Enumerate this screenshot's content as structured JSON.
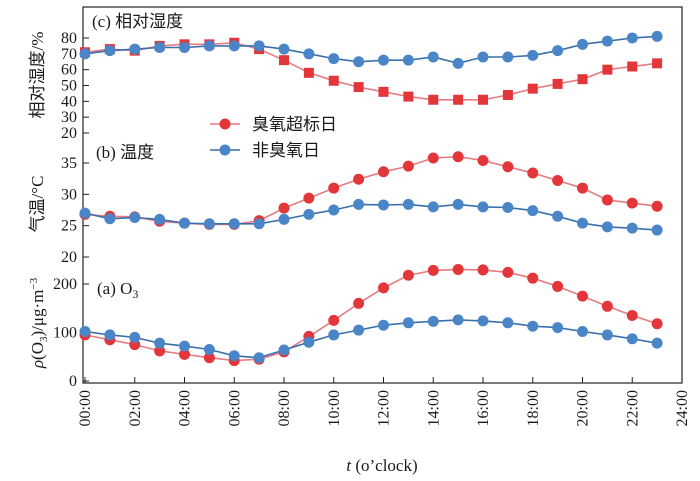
{
  "colors": {
    "red": "#e3363a",
    "blue": "#4a86c7",
    "red_line": "#e67b80",
    "blue_line": "#3a6fae",
    "axis": "#222222"
  },
  "legend": {
    "exceed_label": "臭氧超标日",
    "nonexceed_label": "非臭氧日",
    "placement": "center"
  },
  "xlabel_italic": "t",
  "xlabel_rest": "(o’clock)",
  "chart_data": [
    {
      "type": "line",
      "panel_title": "(c) 相对湿度",
      "ylabel": "相对湿度/%",
      "xlim": [
        0,
        24
      ],
      "ylim": [
        20,
        85
      ],
      "yticks": [
        20,
        30,
        40,
        50,
        60,
        70,
        80
      ],
      "x": [
        0,
        1,
        2,
        3,
        4,
        5,
        6,
        7,
        8,
        9,
        10,
        11,
        12,
        13,
        14,
        15,
        16,
        17,
        18,
        19,
        20,
        21,
        22,
        23
      ],
      "series": [
        {
          "name": "臭氧超标日",
          "color": "red",
          "marker": "square",
          "values": [
            71,
            73,
            72,
            75,
            76,
            76,
            77,
            73,
            66,
            58,
            53,
            49,
            46,
            43,
            41,
            41,
            41,
            44,
            48,
            51,
            54,
            60,
            62,
            64
          ]
        },
        {
          "name": "非臭氧日",
          "color": "blue",
          "marker": "circle",
          "values": [
            70,
            72,
            73,
            74,
            74,
            75,
            75,
            75,
            73,
            70,
            67,
            65,
            66,
            66,
            68,
            64,
            68,
            68,
            69,
            72,
            76,
            78,
            80,
            81
          ]
        }
      ]
    },
    {
      "type": "line",
      "panel_title": "(b) 温度",
      "ylabel": "气温/°C",
      "xlim": [
        0,
        24
      ],
      "ylim": [
        20,
        37
      ],
      "yticks": [
        20,
        25,
        30,
        35
      ],
      "x": [
        0,
        1,
        2,
        3,
        4,
        5,
        6,
        7,
        8,
        9,
        10,
        11,
        12,
        13,
        14,
        15,
        16,
        17,
        18,
        19,
        20,
        21,
        22,
        23
      ],
      "series": [
        {
          "name": "臭氧超标日",
          "color": "red",
          "marker": "circle",
          "values": [
            26.8,
            26.5,
            26.4,
            25.7,
            25.4,
            25.2,
            25.2,
            25.8,
            27.8,
            29.4,
            31.0,
            32.4,
            33.6,
            34.5,
            35.8,
            36.0,
            35.4,
            34.4,
            33.4,
            32.2,
            31.0,
            29.1,
            28.6,
            28.1
          ]
        },
        {
          "name": "非臭氧日",
          "color": "blue",
          "marker": "circle",
          "values": [
            27.0,
            26.1,
            26.3,
            26.0,
            25.4,
            25.3,
            25.3,
            25.3,
            26.0,
            26.8,
            27.5,
            28.4,
            28.3,
            28.4,
            28.0,
            28.4,
            28.0,
            27.9,
            27.4,
            26.5,
            25.4,
            24.8,
            24.6,
            24.3
          ]
        }
      ]
    },
    {
      "type": "line",
      "panel_title_prefix": "(a) O",
      "panel_title_sub": "3",
      "ylabel_rho": "ρ",
      "ylabel_a": "(O",
      "ylabel_sub": "3",
      "ylabel_b": ")/μg·m",
      "ylabel_sup": "−3",
      "xlim": [
        0,
        24
      ],
      "ylim": [
        0,
        265
      ],
      "yticks": [
        0,
        100,
        200
      ],
      "xticks": [
        "00:00",
        "02:00",
        "04:00",
        "06:00",
        "08:00",
        "10:00",
        "12:00",
        "14:00",
        "16:00",
        "18:00",
        "20:00",
        "22:00",
        "24:00"
      ],
      "x": [
        0,
        1,
        2,
        3,
        4,
        5,
        6,
        7,
        8,
        9,
        10,
        11,
        12,
        13,
        14,
        15,
        16,
        17,
        18,
        19,
        20,
        21,
        22,
        23
      ],
      "series": [
        {
          "name": "臭氧超标日",
          "color": "red",
          "marker": "circle",
          "values": [
            95,
            85,
            75,
            62,
            55,
            48,
            42,
            45,
            60,
            92,
            125,
            160,
            192,
            218,
            228,
            230,
            229,
            224,
            212,
            195,
            175,
            154,
            135,
            118
          ]
        },
        {
          "name": "非臭氧日",
          "color": "blue",
          "marker": "circle",
          "values": [
            102,
            95,
            90,
            78,
            72,
            65,
            52,
            48,
            64,
            80,
            95,
            105,
            115,
            120,
            123,
            126,
            124,
            120,
            113,
            110,
            102,
            95,
            87,
            78
          ]
        }
      ]
    }
  ]
}
